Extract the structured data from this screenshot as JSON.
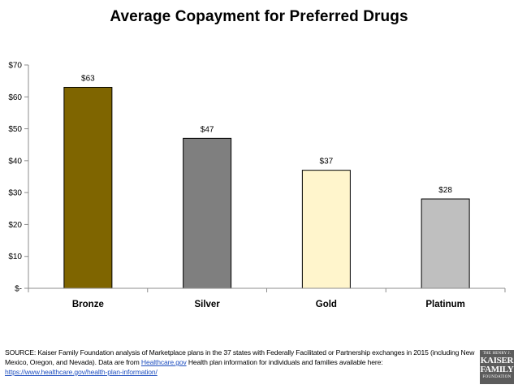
{
  "chart_data": {
    "type": "bar",
    "title": "Average Copayment for Preferred Drugs",
    "categories": [
      "Bronze",
      "Silver",
      "Gold",
      "Platinum"
    ],
    "values": [
      63,
      47,
      37,
      28
    ],
    "data_labels": [
      "$63",
      "$47",
      "$37",
      "$28"
    ],
    "bar_colors": [
      "#7f6500",
      "#7f7f7f",
      "#fff5cc",
      "#bfbfbf"
    ],
    "ylim": [
      0,
      70
    ],
    "yticks": [
      0,
      10,
      20,
      30,
      40,
      50,
      60,
      70
    ],
    "ytick_labels": [
      "$-",
      "$10",
      "$20",
      "$30",
      "$40",
      "$50",
      "$60",
      "$70"
    ],
    "xlabel": "",
    "ylabel": "",
    "grid": false
  },
  "footer": {
    "source_part1": "SOURCE: Kaiser Family Foundation analysis of Marketplace plans in the 37 states with Federally Facilitated or Partnership exchanges in 2015 (including New Mexico, Oregon, and Nevada). Data are from ",
    "link_text": "Healthcare.gov",
    "source_part2": " Health plan information for individuals and families available here:",
    "url": "https://www.healthcare.gov/health-plan-information/"
  },
  "logo": {
    "line1": "THE HENRY J.",
    "line2": "KAISER",
    "line3": "FAMILY",
    "line4": "FOUNDATION"
  }
}
